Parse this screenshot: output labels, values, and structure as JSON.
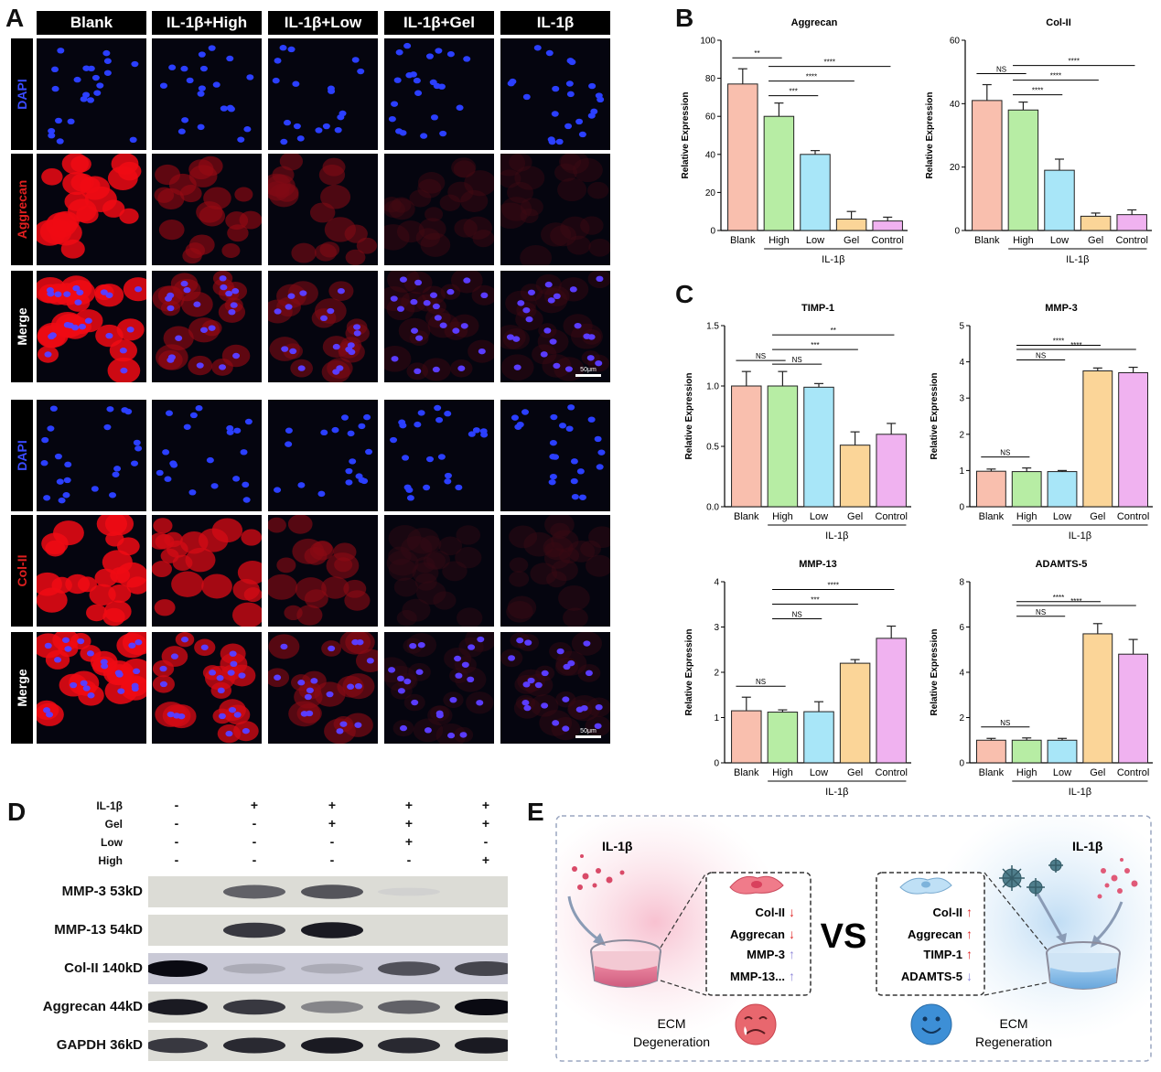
{
  "panels": {
    "a": "A",
    "b": "B",
    "c": "C",
    "d": "D",
    "e": "E"
  },
  "panel_a": {
    "columns": [
      "Blank",
      "IL-1β+High",
      "IL-1β+Low",
      "IL-1β+Gel",
      "IL-1β"
    ],
    "rows": [
      "DAPI",
      "Aggrecan",
      "Merge",
      "DAPI",
      "Col-II",
      "Merge"
    ],
    "scale_bar": "50μm"
  },
  "chart_data": [
    {
      "type": "bar",
      "title": "Aggrecan",
      "ylabel": "Relative Expression",
      "ylim": [
        0,
        100
      ],
      "yticks": [
        0,
        20,
        40,
        60,
        80,
        100
      ],
      "categories": [
        "Blank",
        "High",
        "Low",
        "Gel",
        "Control"
      ],
      "values": [
        77,
        60,
        40,
        6,
        5
      ],
      "errors": [
        8,
        7,
        2,
        4,
        2
      ],
      "group_label": "IL-1β",
      "sig": [
        {
          "from": 0,
          "to": 1,
          "label": "**"
        },
        {
          "from": 1,
          "to": 2,
          "label": "***"
        },
        {
          "from": 1,
          "to": 3,
          "label": "****"
        },
        {
          "from": 1,
          "to": 4,
          "label": "****"
        }
      ]
    },
    {
      "type": "bar",
      "title": "Col-II",
      "ylabel": "Relative Expression",
      "ylim": [
        0,
        60
      ],
      "yticks": [
        0,
        20,
        40,
        60
      ],
      "categories": [
        "Blank",
        "High",
        "Low",
        "Gel",
        "Control"
      ],
      "values": [
        41,
        38,
        19,
        4.5,
        5
      ],
      "errors": [
        5,
        2.5,
        3.5,
        1,
        1.5
      ],
      "group_label": "IL-1β",
      "sig": [
        {
          "from": 0,
          "to": 1,
          "label": "NS"
        },
        {
          "from": 1,
          "to": 2,
          "label": "****"
        },
        {
          "from": 1,
          "to": 3,
          "label": "****"
        },
        {
          "from": 1,
          "to": 4,
          "label": "****"
        }
      ]
    },
    {
      "type": "bar",
      "title": "TIMP-1",
      "ylabel": "Relative Expression",
      "ylim": [
        0,
        1.5
      ],
      "yticks": [
        0.0,
        0.5,
        1.0,
        1.5
      ],
      "categories": [
        "Blank",
        "High",
        "Low",
        "Gel",
        "Control"
      ],
      "values": [
        1.0,
        1.0,
        0.99,
        0.51,
        0.6
      ],
      "errors": [
        0.12,
        0.12,
        0.03,
        0.11,
        0.09
      ],
      "group_label": "IL-1β",
      "sig": [
        {
          "from": 0,
          "to": 1,
          "label": "NS"
        },
        {
          "from": 1,
          "to": 2,
          "label": "NS"
        },
        {
          "from": 1,
          "to": 3,
          "label": "***"
        },
        {
          "from": 1,
          "to": 4,
          "label": "**"
        }
      ]
    },
    {
      "type": "bar",
      "title": "MMP-3",
      "ylabel": "Relative Expression",
      "ylim": [
        0,
        5
      ],
      "yticks": [
        0,
        1,
        2,
        3,
        4,
        5
      ],
      "categories": [
        "Blank",
        "High",
        "Low",
        "Gel",
        "Control"
      ],
      "values": [
        0.98,
        0.97,
        0.97,
        3.75,
        3.7
      ],
      "errors": [
        0.06,
        0.1,
        0.03,
        0.08,
        0.15
      ],
      "group_label": "IL-1β",
      "sig": [
        {
          "from": 0,
          "to": 1,
          "label": "NS"
        },
        {
          "from": 1,
          "to": 2,
          "label": "NS"
        },
        {
          "from": 1,
          "to": 3,
          "label": "****"
        },
        {
          "from": 1,
          "to": 4,
          "label": "****"
        }
      ]
    },
    {
      "type": "bar",
      "title": "MMP-13",
      "ylabel": "Relative Expression",
      "ylim": [
        0,
        4
      ],
      "yticks": [
        0,
        1,
        2,
        3,
        4
      ],
      "categories": [
        "Blank",
        "High",
        "Low",
        "Gel",
        "Control"
      ],
      "values": [
        1.15,
        1.12,
        1.13,
        2.2,
        2.75
      ],
      "errors": [
        0.3,
        0.05,
        0.22,
        0.08,
        0.27
      ],
      "group_label": "IL-1β",
      "sig": [
        {
          "from": 0,
          "to": 1,
          "label": "NS"
        },
        {
          "from": 1,
          "to": 2,
          "label": "NS"
        },
        {
          "from": 1,
          "to": 3,
          "label": "***"
        },
        {
          "from": 1,
          "to": 4,
          "label": "****"
        }
      ]
    },
    {
      "type": "bar",
      "title": "ADAMTS-5",
      "ylabel": "Relative Expression",
      "ylim": [
        0,
        8
      ],
      "yticks": [
        0,
        2,
        4,
        6,
        8
      ],
      "categories": [
        "Blank",
        "High",
        "Low",
        "Gel",
        "Control"
      ],
      "values": [
        1.0,
        1.0,
        1.0,
        5.7,
        4.8
      ],
      "errors": [
        0.08,
        0.1,
        0.08,
        0.45,
        0.65
      ],
      "group_label": "IL-1β",
      "sig": [
        {
          "from": 0,
          "to": 1,
          "label": "NS"
        },
        {
          "from": 1,
          "to": 2,
          "label": "NS"
        },
        {
          "from": 1,
          "to": 3,
          "label": "****"
        },
        {
          "from": 1,
          "to": 4,
          "label": "****"
        }
      ]
    }
  ],
  "bar_colors": [
    "#f9bfae",
    "#b7eda4",
    "#a8e6f8",
    "#fbd598",
    "#f0b2f0"
  ],
  "panel_d": {
    "conditions": [
      {
        "label": "IL-1β",
        "signs": [
          "-",
          "+",
          "+",
          "+",
          "+"
        ]
      },
      {
        "label": "Gel",
        "signs": [
          "-",
          "-",
          "+",
          "+",
          "+"
        ]
      },
      {
        "label": "Low",
        "signs": [
          "-",
          "-",
          "-",
          "+",
          "-"
        ]
      },
      {
        "label": "High",
        "signs": [
          "-",
          "-",
          "-",
          "-",
          "+"
        ]
      }
    ],
    "blots": [
      {
        "label": "MMP-3 53kD",
        "bands": [
          0,
          0.7,
          0.75,
          0.08,
          0
        ]
      },
      {
        "label": "MMP-13 54kD",
        "bands": [
          0,
          0.85,
          0.95,
          0,
          0
        ]
      },
      {
        "label": "Col-II 140kD",
        "bands": [
          1.0,
          0.3,
          0.3,
          0.75,
          0.8
        ]
      },
      {
        "label": "Aggrecan 44kD",
        "bands": [
          0.95,
          0.85,
          0.55,
          0.7,
          1.0
        ]
      },
      {
        "label": "GAPDH 36kD",
        "bands": [
          0.85,
          0.9,
          0.95,
          0.9,
          0.95
        ]
      }
    ]
  },
  "panel_e": {
    "left_stimulus": "IL-1β",
    "right_stimulus": "IL-1β",
    "left_markers": [
      {
        "name": "Col-II",
        "dir": "↓"
      },
      {
        "name": "Aggrecan",
        "dir": "↓"
      },
      {
        "name": "MMP-3",
        "dir": "↑"
      },
      {
        "name": "MMP-13...",
        "dir": "↑"
      }
    ],
    "right_markers": [
      {
        "name": "Col-II",
        "dir": "↑"
      },
      {
        "name": "Aggrecan",
        "dir": "↑"
      },
      {
        "name": "TIMP-1",
        "dir": "↑"
      },
      {
        "name": "ADAMTS-5",
        "dir": "↓"
      }
    ],
    "vs": "VS",
    "left_title_1": "ECM",
    "left_title_2": "Degeneration",
    "right_title_1": "ECM",
    "right_title_2": "Regeneration"
  }
}
